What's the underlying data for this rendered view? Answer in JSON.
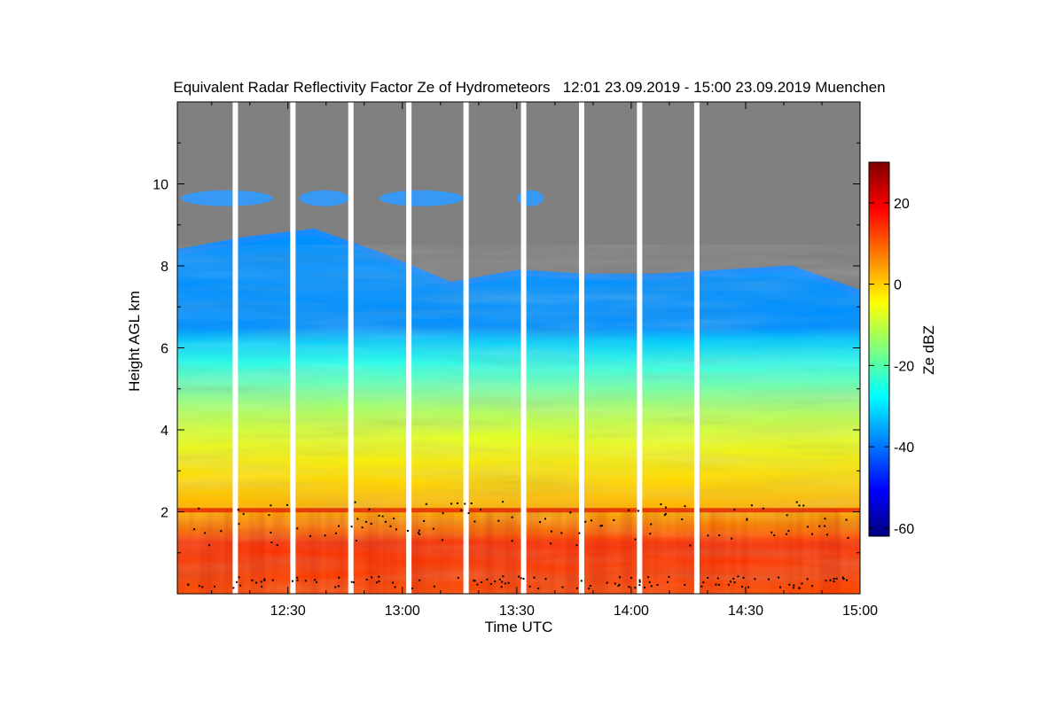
{
  "chart_data": {
    "type": "heatmap",
    "title": "Equivalent Radar Reflectivity Factor Ze of Hydrometeors   12:01 23.09.2019 - 15:00 23.09.2019 Muenchen",
    "xlabel": "Time UTC",
    "ylabel": "Height AGL km",
    "colorbar_label": "Ze dBZ",
    "x_tick_labels": [
      "12:30",
      "13:00",
      "13:30",
      "14:00",
      "14:30",
      "15:00"
    ],
    "x_tick_minutes": [
      30,
      60,
      90,
      120,
      150,
      180
    ],
    "y_tick_labels": [
      "2",
      "4",
      "6",
      "8",
      "10"
    ],
    "y_tick_values": [
      2,
      4,
      6,
      8,
      10
    ],
    "colorbar_tick_labels": [
      "20",
      "0",
      "-20",
      "-40",
      "-60"
    ],
    "colorbar_tick_values": [
      20,
      0,
      -20,
      -40,
      -60
    ],
    "xlim_minutes": [
      1,
      180
    ],
    "ylim_km": [
      0,
      12
    ],
    "clim_dbz": [
      -62,
      30
    ],
    "data_gaps_minutes": [
      16.2,
      31.3,
      46.5,
      61.7,
      76.7,
      91.8,
      107,
      122.2,
      137.2
    ],
    "cloud_top_km": [
      8.4,
      8.7,
      8.9,
      8.3,
      7.6,
      7.9,
      7.8,
      7.8,
      7.9,
      8.0,
      7.4
    ],
    "upper_layer_km": [
      9.5,
      9.8
    ],
    "melting_layer_km": 2.05,
    "colors": {
      "missing": "#808080",
      "colormap": [
        "#00007f",
        "#0000ff",
        "#007fff",
        "#00ffff",
        "#7fff7f",
        "#ffff00",
        "#ff7f00",
        "#ff0000",
        "#7f0000"
      ]
    }
  }
}
